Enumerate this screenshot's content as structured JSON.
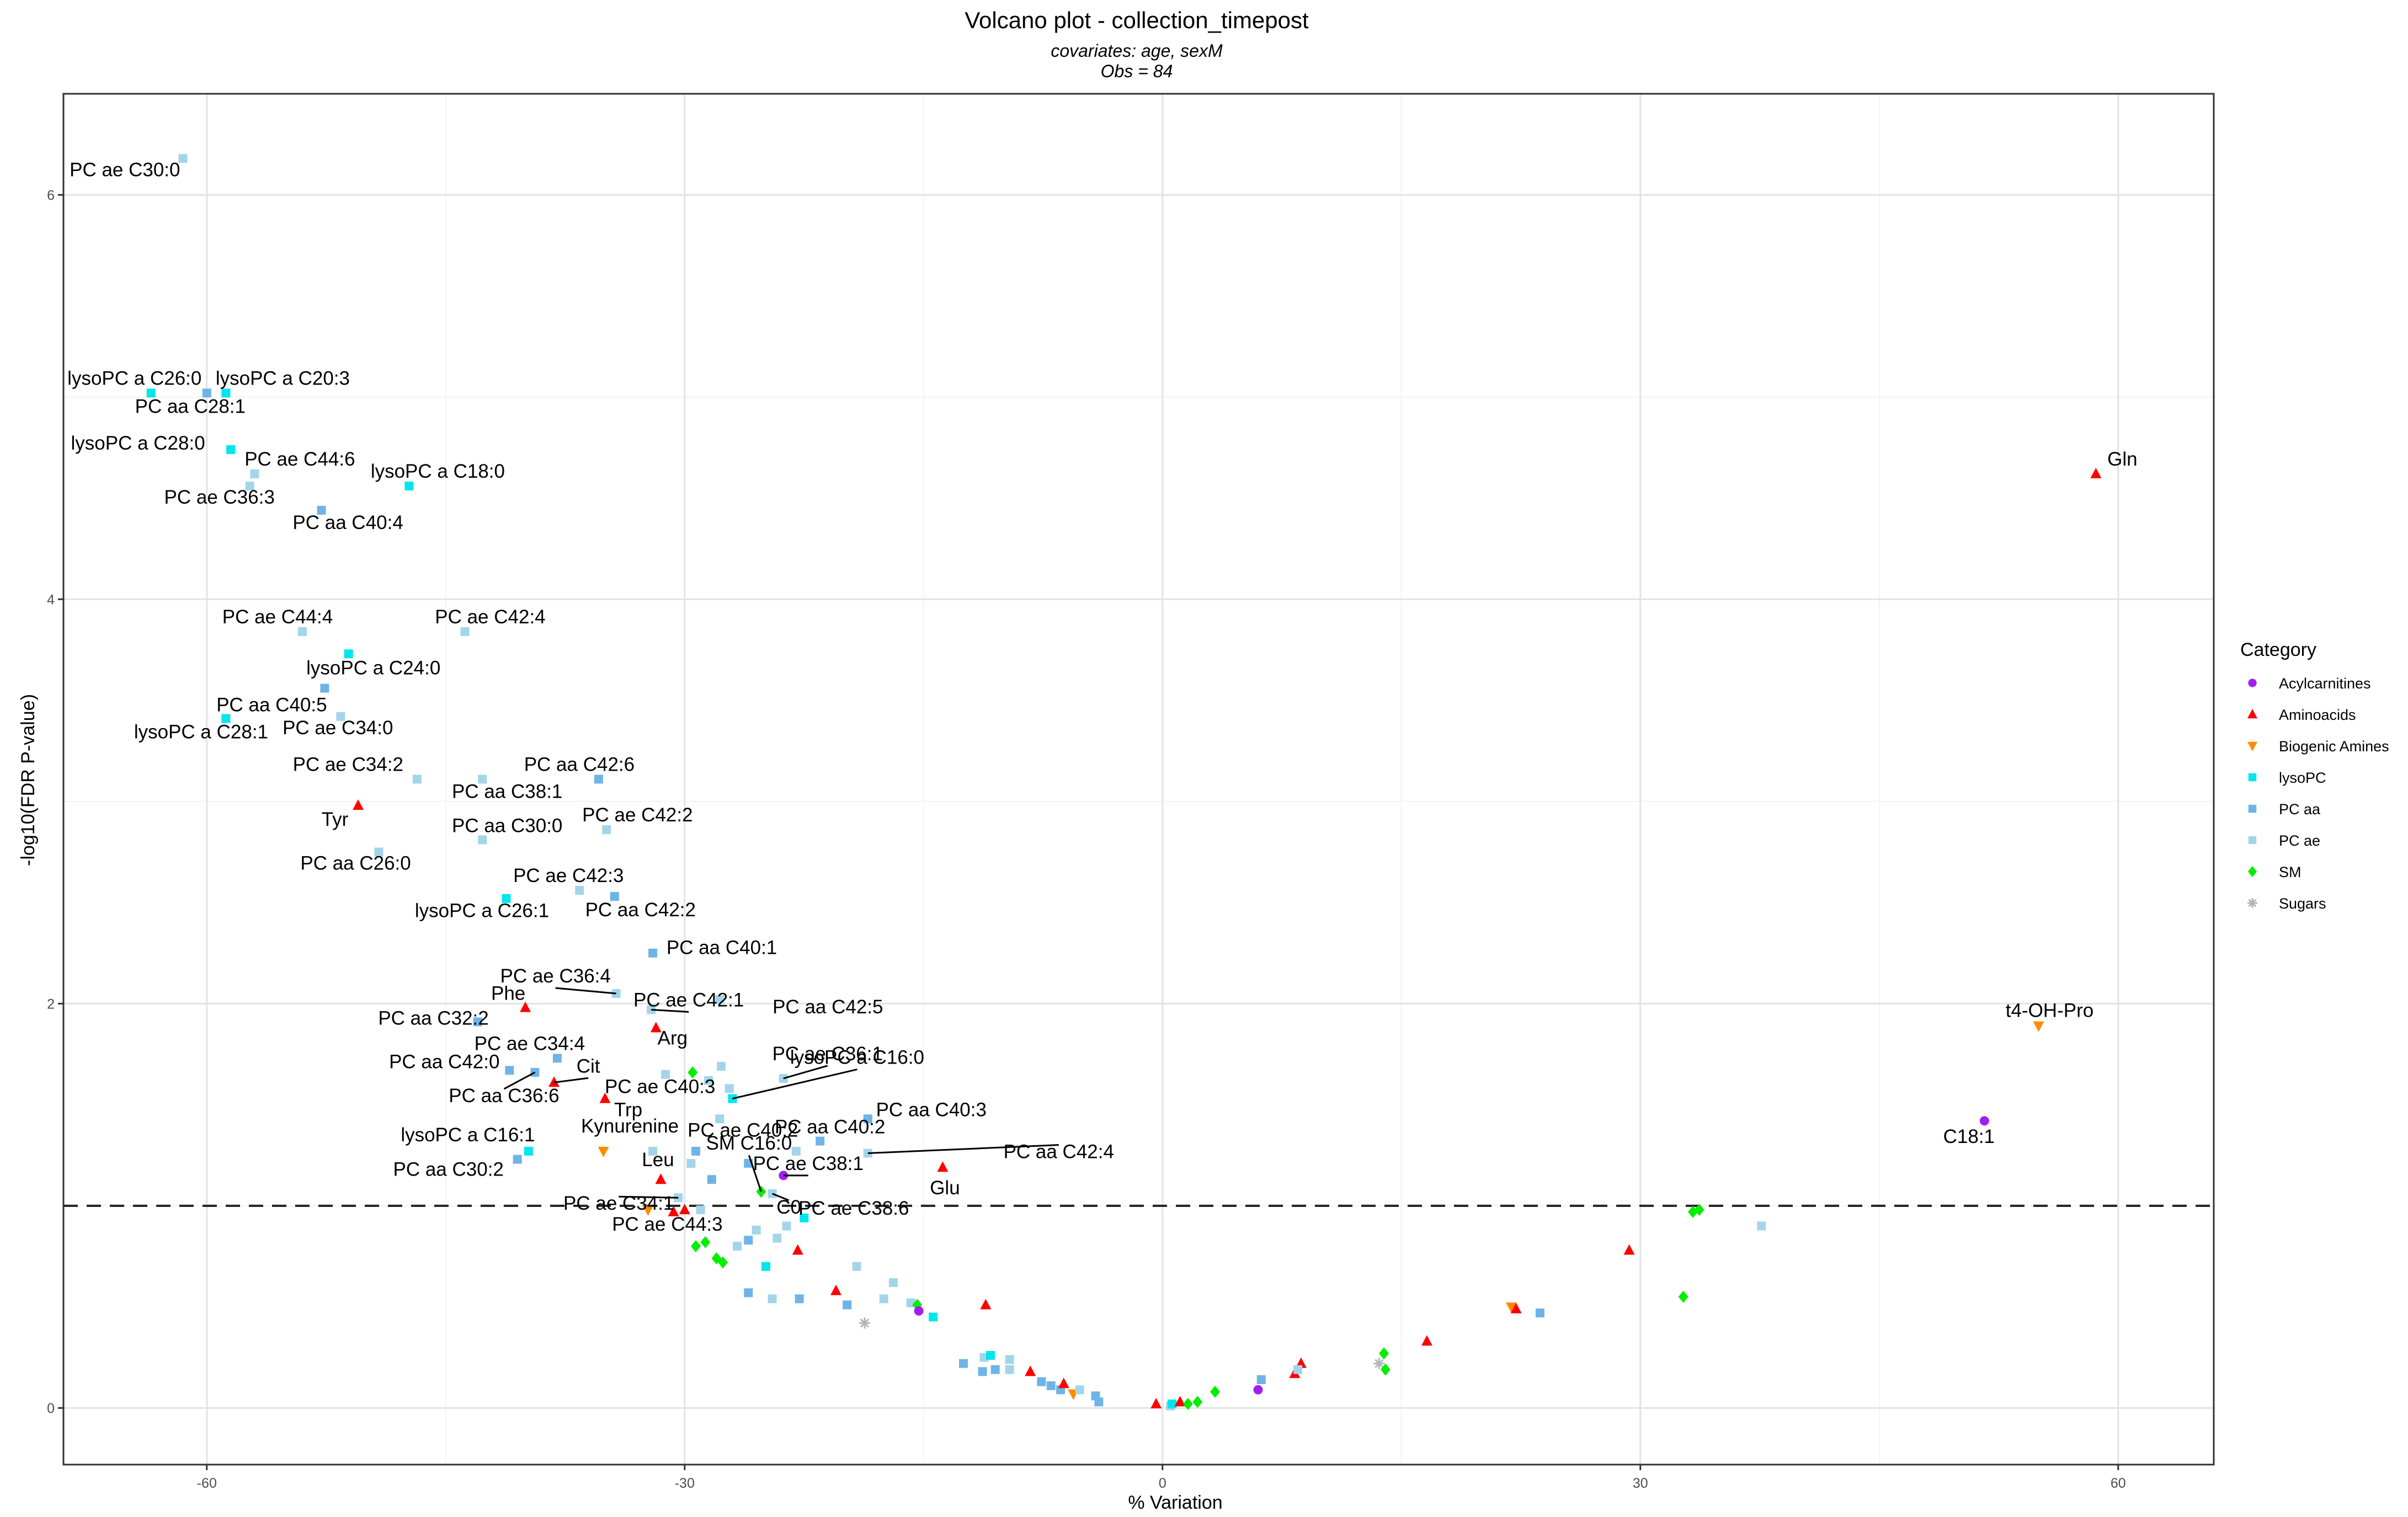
{
  "chart_data": {
    "type": "scatter",
    "title": "Volcano plot - collection_timepost",
    "subtitle_lines": [
      "covariates: age, sexM",
      "Obs = 84"
    ],
    "xlabel": "% Variation",
    "ylabel": "-log10(FDR P-value)",
    "xlim": [
      -69,
      66
    ],
    "ylim": [
      -0.28,
      6.5
    ],
    "x_ticks": [
      -60,
      -30,
      0,
      30,
      60
    ],
    "y_ticks": [
      0,
      2,
      4,
      6
    ],
    "grid": true,
    "threshold_line": {
      "y": 1,
      "style": "dashed"
    },
    "legend": {
      "title": "Category",
      "position": "right",
      "entries": [
        {
          "name": "Acylcarnitines",
          "color": "#a020f0",
          "shape": "circle"
        },
        {
          "name": "Aminoacids",
          "color": "#ff0000",
          "shape": "triangle-up"
        },
        {
          "name": "Biogenic Amines",
          "color": "#ff8c00",
          "shape": "triangle-down"
        },
        {
          "name": "lysoPC",
          "color": "#00e5ee",
          "shape": "square"
        },
        {
          "name": "PC aa",
          "color": "#6eb4e6",
          "shape": "square"
        },
        {
          "name": "PC ae",
          "color": "#a3d5ea",
          "shape": "square"
        },
        {
          "name": "SM",
          "color": "#00ee00",
          "shape": "diamond"
        },
        {
          "name": "Sugars",
          "color": "#b3b3b3",
          "shape": "asterisk"
        }
      ]
    },
    "points": [
      {
        "x": -61.5,
        "y": 6.18,
        "category": "PC ae",
        "label": "PC ae C30:0"
      },
      {
        "x": -63.5,
        "y": 5.02,
        "category": "lysoPC",
        "label": "lysoPC a C26:0"
      },
      {
        "x": -58.8,
        "y": 5.02,
        "category": "PC ae",
        "label": ""
      },
      {
        "x": -58.8,
        "y": 5.02,
        "category": "lysoPC",
        "label": "lysoPC a C20:3"
      },
      {
        "x": -60.0,
        "y": 5.02,
        "category": "PC aa",
        "label": "PC aa C28:1"
      },
      {
        "x": -58.5,
        "y": 4.74,
        "category": "lysoPC",
        "label": "lysoPC a C28:0"
      },
      {
        "x": -57.0,
        "y": 4.62,
        "category": "PC ae",
        "label": "PC ae C44:6"
      },
      {
        "x": -47.3,
        "y": 4.56,
        "category": "lysoPC",
        "label": "lysoPC a C18:0"
      },
      {
        "x": -57.3,
        "y": 4.56,
        "category": "PC ae",
        "label": "PC ae C36:3"
      },
      {
        "x": -52.8,
        "y": 4.44,
        "category": "PC aa",
        "label": "PC aa C40:4"
      },
      {
        "x": 58.6,
        "y": 4.62,
        "category": "Aminoacids",
        "label": "Gln"
      },
      {
        "x": -54.0,
        "y": 3.84,
        "category": "PC ae",
        "label": "PC ae C44:4"
      },
      {
        "x": -43.8,
        "y": 3.84,
        "category": "PC ae",
        "label": "PC ae C42:4"
      },
      {
        "x": -51.1,
        "y": 3.73,
        "category": "lysoPC",
        "label": "lysoPC a C24:0"
      },
      {
        "x": -52.6,
        "y": 3.56,
        "category": "PC aa",
        "label": "PC aa C40:5"
      },
      {
        "x": -58.8,
        "y": 3.41,
        "category": "lysoPC",
        "label": "lysoPC a C28:1"
      },
      {
        "x": -51.6,
        "y": 3.42,
        "category": "PC ae",
        "label": "PC ae C34:0"
      },
      {
        "x": -46.8,
        "y": 3.11,
        "category": "PC ae",
        "label": "PC ae C34:2"
      },
      {
        "x": -42.7,
        "y": 3.11,
        "category": "PC ae",
        "label": "PC aa C38:1"
      },
      {
        "x": -35.4,
        "y": 3.11,
        "category": "PC aa",
        "label": "PC aa C42:6"
      },
      {
        "x": -50.5,
        "y": 2.98,
        "category": "Aminoacids",
        "label": "Tyr"
      },
      {
        "x": -34.9,
        "y": 2.86,
        "category": "PC ae",
        "label": "PC ae C42:2"
      },
      {
        "x": -42.7,
        "y": 2.81,
        "category": "PC ae",
        "label": "PC aa C30:0"
      },
      {
        "x": -49.2,
        "y": 2.75,
        "category": "PC ae",
        "label": "PC aa C26:0"
      },
      {
        "x": -36.6,
        "y": 2.56,
        "category": "PC ae",
        "label": "PC ae C42:3"
      },
      {
        "x": -34.4,
        "y": 2.53,
        "category": "PC aa",
        "label": "PC aa C42:2"
      },
      {
        "x": -41.2,
        "y": 2.52,
        "category": "lysoPC",
        "label": "lysoPC a C26:1"
      },
      {
        "x": -32.0,
        "y": 2.25,
        "category": "PC aa",
        "label": "PC aa C40:1"
      },
      {
        "x": -34.3,
        "y": 2.05,
        "category": "PC ae",
        "label": "PC ae C36:4"
      },
      {
        "x": -32.1,
        "y": 1.97,
        "category": "PC ae",
        "label": "PC ae C42:1"
      },
      {
        "x": -40.0,
        "y": 1.98,
        "category": "Aminoacids",
        "label": "Phe"
      },
      {
        "x": -31.8,
        "y": 1.88,
        "category": "Aminoacids",
        "label": "Arg"
      },
      {
        "x": -27.8,
        "y": 2.02,
        "category": "PC ae",
        "label": "PC aa C42:5"
      },
      {
        "x": -43.0,
        "y": 1.91,
        "category": "PC aa",
        "label": "PC aa C32:2"
      },
      {
        "x": -38.0,
        "y": 1.73,
        "category": "PC aa",
        "label": "PC ae C34:4"
      },
      {
        "x": -31.2,
        "y": 1.65,
        "category": "PC ae",
        "label": "PC ae C40:3"
      },
      {
        "x": -29.5,
        "y": 1.66,
        "category": "SM",
        "label": ""
      },
      {
        "x": -41.0,
        "y": 1.67,
        "category": "PC aa",
        "label": "PC aa C42:0"
      },
      {
        "x": -39.4,
        "y": 1.66,
        "category": "PC aa",
        "label": "PC aa C36:6"
      },
      {
        "x": -38.2,
        "y": 1.61,
        "category": "Aminoacids",
        "label": "Cit"
      },
      {
        "x": -35.0,
        "y": 1.53,
        "category": "Aminoacids",
        "label": "Trp"
      },
      {
        "x": -23.8,
        "y": 1.63,
        "category": "PC ae",
        "label": "PC ae C36:1"
      },
      {
        "x": -27.0,
        "y": 1.53,
        "category": "lysoPC",
        "label": "lysoPC a C16:0"
      },
      {
        "x": -28.5,
        "y": 1.62,
        "category": "PC ae",
        "label": ""
      },
      {
        "x": -27.2,
        "y": 1.58,
        "category": "PC ae",
        "label": ""
      },
      {
        "x": -27.7,
        "y": 1.69,
        "category": "PC ae",
        "label": ""
      },
      {
        "x": -27.8,
        "y": 1.43,
        "category": "PC ae",
        "label": "PC ae C40:2"
      },
      {
        "x": -18.5,
        "y": 1.43,
        "category": "PC aa",
        "label": "PC aa C40:3"
      },
      {
        "x": -21.5,
        "y": 1.32,
        "category": "PC aa",
        "label": "PC aa C40:2"
      },
      {
        "x": -18.5,
        "y": 1.26,
        "category": "PC ae",
        "label": "PC aa C42:4"
      },
      {
        "x": -39.8,
        "y": 1.27,
        "category": "lysoPC",
        "label": "lysoPC a C16:1"
      },
      {
        "x": -40.5,
        "y": 1.23,
        "category": "PC aa",
        "label": "PC aa C30:2"
      },
      {
        "x": -35.1,
        "y": 1.27,
        "category": "Biogenic Amines",
        "label": "Kynurenine"
      },
      {
        "x": -32.0,
        "y": 1.27,
        "category": "PC ae",
        "label": ""
      },
      {
        "x": -29.3,
        "y": 1.27,
        "category": "PC aa",
        "label": ""
      },
      {
        "x": -29.6,
        "y": 1.21,
        "category": "PC ae",
        "label": ""
      },
      {
        "x": -26.0,
        "y": 1.21,
        "category": "PC aa",
        "label": ""
      },
      {
        "x": -25.2,
        "y": 1.07,
        "category": "SM",
        "label": "SM C16:0"
      },
      {
        "x": -23.8,
        "y": 1.15,
        "category": "Acylcarnitines",
        "label": "PC ae C38:1"
      },
      {
        "x": -23.0,
        "y": 1.27,
        "category": "PC ae",
        "label": ""
      },
      {
        "x": -31.5,
        "y": 1.13,
        "category": "Aminoacids",
        "label": "Leu"
      },
      {
        "x": -28.3,
        "y": 1.13,
        "category": "PC aa",
        "label": ""
      },
      {
        "x": -30.4,
        "y": 1.04,
        "category": "PC ae",
        "label": "PC ae C34:1"
      },
      {
        "x": -24.5,
        "y": 1.06,
        "category": "PC ae",
        "label": "C0"
      },
      {
        "x": -22.5,
        "y": 0.94,
        "category": "lysoPC",
        "label": "PC ae C38:6"
      },
      {
        "x": -13.8,
        "y": 1.19,
        "category": "Aminoacids",
        "label": "Glu"
      },
      {
        "x": -30.7,
        "y": 0.97,
        "category": "Aminoacids",
        "label": ""
      },
      {
        "x": -30.0,
        "y": 0.98,
        "category": "Aminoacids",
        "label": ""
      },
      {
        "x": -32.3,
        "y": 0.98,
        "category": "Biogenic Amines",
        "label": "PC ae C44:3"
      },
      {
        "x": -29.0,
        "y": 0.98,
        "category": "PC ae",
        "label": ""
      },
      {
        "x": -29.3,
        "y": 0.8,
        "category": "SM",
        "label": ""
      },
      {
        "x": -28.7,
        "y": 0.82,
        "category": "SM",
        "label": ""
      },
      {
        "x": -28.0,
        "y": 0.74,
        "category": "SM",
        "label": ""
      },
      {
        "x": -27.6,
        "y": 0.72,
        "category": "SM",
        "label": ""
      },
      {
        "x": -26.7,
        "y": 0.8,
        "category": "PC ae",
        "label": ""
      },
      {
        "x": -26.0,
        "y": 0.83,
        "category": "PC aa",
        "label": ""
      },
      {
        "x": -25.5,
        "y": 0.88,
        "category": "PC ae",
        "label": ""
      },
      {
        "x": -24.2,
        "y": 0.84,
        "category": "PC ae",
        "label": ""
      },
      {
        "x": -23.6,
        "y": 0.9,
        "category": "PC ae",
        "label": ""
      },
      {
        "x": -22.9,
        "y": 0.78,
        "category": "Aminoacids",
        "label": ""
      },
      {
        "x": -24.9,
        "y": 0.7,
        "category": "lysoPC",
        "label": ""
      },
      {
        "x": -26.0,
        "y": 0.57,
        "category": "PC aa",
        "label": ""
      },
      {
        "x": -24.5,
        "y": 0.54,
        "category": "PC ae",
        "label": ""
      },
      {
        "x": -22.8,
        "y": 0.54,
        "category": "PC aa",
        "label": ""
      },
      {
        "x": -20.5,
        "y": 0.58,
        "category": "Aminoacids",
        "label": ""
      },
      {
        "x": -19.8,
        "y": 0.51,
        "category": "PC aa",
        "label": ""
      },
      {
        "x": -19.2,
        "y": 0.7,
        "category": "PC ae",
        "label": ""
      },
      {
        "x": -17.5,
        "y": 0.54,
        "category": "PC ae",
        "label": ""
      },
      {
        "x": -16.9,
        "y": 0.62,
        "category": "PC ae",
        "label": ""
      },
      {
        "x": -15.8,
        "y": 0.52,
        "category": "PC ae",
        "label": ""
      },
      {
        "x": -15.4,
        "y": 0.51,
        "category": "SM",
        "label": ""
      },
      {
        "x": -15.3,
        "y": 0.48,
        "category": "Acylcarnitines",
        "label": ""
      },
      {
        "x": -14.4,
        "y": 0.45,
        "category": "lysoPC",
        "label": ""
      },
      {
        "x": -18.7,
        "y": 0.42,
        "category": "Sugars",
        "label": ""
      },
      {
        "x": -11.1,
        "y": 0.51,
        "category": "Aminoacids",
        "label": ""
      },
      {
        "x": -12.5,
        "y": 0.22,
        "category": "PC aa",
        "label": ""
      },
      {
        "x": -11.2,
        "y": 0.25,
        "category": "PC ae",
        "label": ""
      },
      {
        "x": -10.8,
        "y": 0.26,
        "category": "lysoPC",
        "label": ""
      },
      {
        "x": -10.5,
        "y": 0.19,
        "category": "PC aa",
        "label": ""
      },
      {
        "x": -9.6,
        "y": 0.24,
        "category": "PC ae",
        "label": ""
      },
      {
        "x": -11.3,
        "y": 0.18,
        "category": "PC aa",
        "label": ""
      },
      {
        "x": -9.6,
        "y": 0.19,
        "category": "PC ae",
        "label": ""
      },
      {
        "x": -8.3,
        "y": 0.18,
        "category": "Aminoacids",
        "label": ""
      },
      {
        "x": -7.6,
        "y": 0.13,
        "category": "PC aa",
        "label": ""
      },
      {
        "x": -7.0,
        "y": 0.11,
        "category": "PC aa",
        "label": ""
      },
      {
        "x": -6.4,
        "y": 0.09,
        "category": "PC aa",
        "label": ""
      },
      {
        "x": -6.2,
        "y": 0.12,
        "category": "Aminoacids",
        "label": ""
      },
      {
        "x": -5.6,
        "y": 0.07,
        "category": "Biogenic Amines",
        "label": ""
      },
      {
        "x": -5.2,
        "y": 0.09,
        "category": "PC ae",
        "label": ""
      },
      {
        "x": -4.2,
        "y": 0.06,
        "category": "PC aa",
        "label": ""
      },
      {
        "x": -4.0,
        "y": 0.03,
        "category": "PC aa",
        "label": ""
      },
      {
        "x": -0.4,
        "y": 0.02,
        "category": "Aminoacids",
        "label": ""
      },
      {
        "x": 0.5,
        "y": 0.01,
        "category": "PC ae",
        "label": ""
      },
      {
        "x": 0.6,
        "y": 0.02,
        "category": "lysoPC",
        "label": ""
      },
      {
        "x": 1.1,
        "y": 0.03,
        "category": "Aminoacids",
        "label": ""
      },
      {
        "x": 1.6,
        "y": 0.02,
        "category": "SM",
        "label": ""
      },
      {
        "x": 2.2,
        "y": 0.03,
        "category": "SM",
        "label": ""
      },
      {
        "x": 3.3,
        "y": 0.08,
        "category": "SM",
        "label": ""
      },
      {
        "x": 6.0,
        "y": 0.09,
        "category": "Acylcarnitines",
        "label": ""
      },
      {
        "x": 6.2,
        "y": 0.14,
        "category": "PC aa",
        "label": ""
      },
      {
        "x": 8.3,
        "y": 0.17,
        "category": "Aminoacids",
        "label": ""
      },
      {
        "x": 8.7,
        "y": 0.22,
        "category": "Aminoacids",
        "label": ""
      },
      {
        "x": 8.5,
        "y": 0.19,
        "category": "PC ae",
        "label": ""
      },
      {
        "x": 13.6,
        "y": 0.22,
        "category": "Sugars",
        "label": ""
      },
      {
        "x": 13.9,
        "y": 0.27,
        "category": "SM",
        "label": ""
      },
      {
        "x": 14.0,
        "y": 0.19,
        "category": "SM",
        "label": ""
      },
      {
        "x": 16.6,
        "y": 0.33,
        "category": "Aminoacids",
        "label": ""
      },
      {
        "x": 21.9,
        "y": 0.5,
        "category": "Biogenic Amines",
        "label": ""
      },
      {
        "x": 22.2,
        "y": 0.49,
        "category": "Aminoacids",
        "label": ""
      },
      {
        "x": 23.7,
        "y": 0.47,
        "category": "PC aa",
        "label": ""
      },
      {
        "x": 29.3,
        "y": 0.78,
        "category": "Aminoacids",
        "label": ""
      },
      {
        "x": 32.7,
        "y": 0.55,
        "category": "SM",
        "label": ""
      },
      {
        "x": 33.3,
        "y": 0.97,
        "category": "SM",
        "label": ""
      },
      {
        "x": 33.7,
        "y": 0.98,
        "category": "SM",
        "label": ""
      },
      {
        "x": 37.6,
        "y": 0.9,
        "category": "PC ae",
        "label": ""
      },
      {
        "x": 51.6,
        "y": 1.42,
        "category": "Acylcarnitines",
        "label": "C18:1"
      },
      {
        "x": 55.0,
        "y": 1.89,
        "category": "Biogenic Amines",
        "label": "t4-OH-Pro"
      }
    ]
  }
}
